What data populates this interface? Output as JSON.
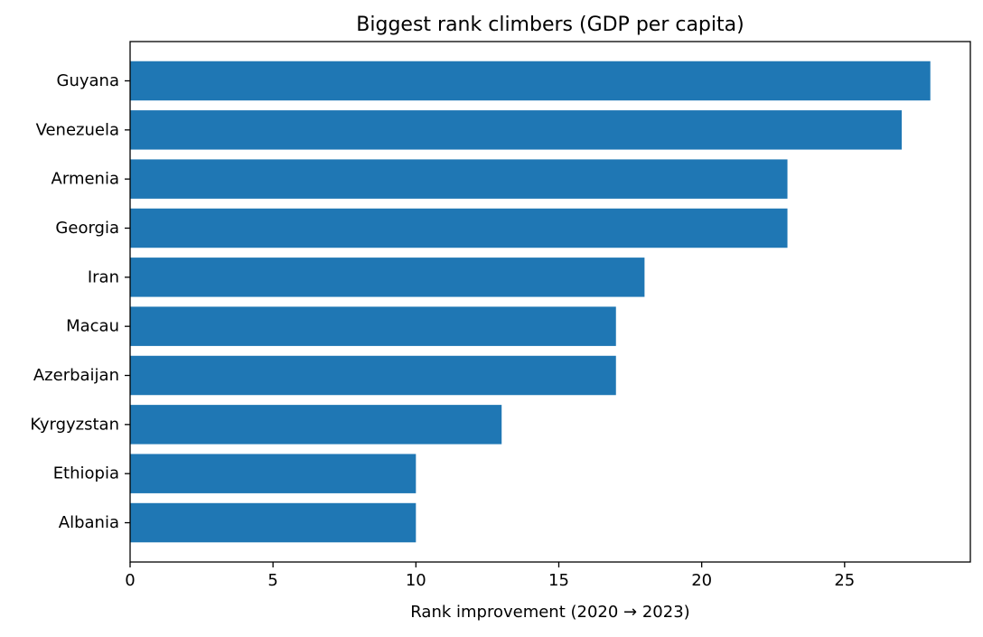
{
  "chart_data": {
    "type": "bar",
    "orientation": "horizontal",
    "title": "Biggest rank climbers (GDP per capita)",
    "xlabel": "Rank improvement (2020 → 2023)",
    "ylabel": "",
    "categories": [
      "Guyana",
      "Venezuela",
      "Armenia",
      "Georgia",
      "Iran",
      "Macau",
      "Azerbaijan",
      "Kyrgyzstan",
      "Ethiopia",
      "Albania"
    ],
    "values": [
      28,
      27,
      23,
      23,
      18,
      17,
      17,
      13,
      10,
      10
    ],
    "xlim": [
      0,
      29.4
    ],
    "xticks": [
      0,
      5,
      10,
      15,
      20,
      25
    ],
    "grid": false,
    "legend": "none",
    "colors": {
      "bar": "#1f77b4",
      "axis": "#000000",
      "background": "#ffffff"
    }
  }
}
